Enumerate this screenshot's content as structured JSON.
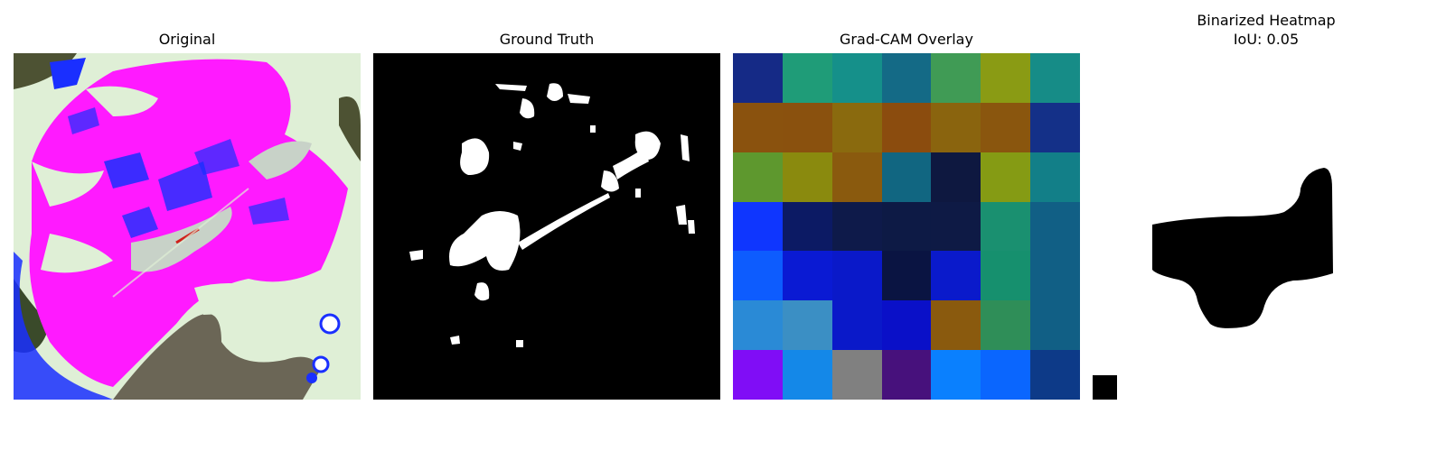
{
  "panels": [
    {
      "title": "Original"
    },
    {
      "title": "Ground Truth"
    },
    {
      "title": "Grad-CAM Overlay"
    },
    {
      "title": "Binarized Heatmap",
      "subtitle": "IoU: 0.05"
    }
  ],
  "gradcam_grid": [
    [
      "#152a86",
      "#1f9c78",
      "#15908a",
      "#146a86",
      "#409b55",
      "#8a9b14",
      "#168c87"
    ],
    [
      "#8a520e",
      "#8a510e",
      "#8a6a0e",
      "#8b4c0e",
      "#8a640e",
      "#8a560e",
      "#143088"
    ],
    [
      "#5e982e",
      "#8a8a0e",
      "#8a5a0e",
      "#116681",
      "#0e1840",
      "#859b14",
      "#127f88"
    ],
    [
      "#0f36fe",
      "#0c1a64",
      "#0e1a4a",
      "#0d1a45",
      "#0e1a45",
      "#1a9070",
      "#115f85"
    ],
    [
      "#0d5cfe",
      "#0a1ad3",
      "#0a19c9",
      "#0a1442",
      "#0a1acb",
      "#16906e",
      "#115f85"
    ],
    [
      "#2a8ad6",
      "#3b8fc4",
      "#0a19c9",
      "#0a10c8",
      "#8a5a0e",
      "#2f8e58",
      "#115f85"
    ],
    [
      "#800df6",
      "#1488e8",
      "#808080",
      "#47117c",
      "#0a80fe",
      "#0a66fe",
      "#0d3a88"
    ]
  ],
  "colors": {
    "background": "#ffffff",
    "mask_foreground": "#ffffff",
    "mask_background": "#000000",
    "original_magenta": "#ff1aff",
    "original_pale": "#dfefd6",
    "original_blue": "#1a2fff",
    "original_olive": "#4d5233"
  }
}
